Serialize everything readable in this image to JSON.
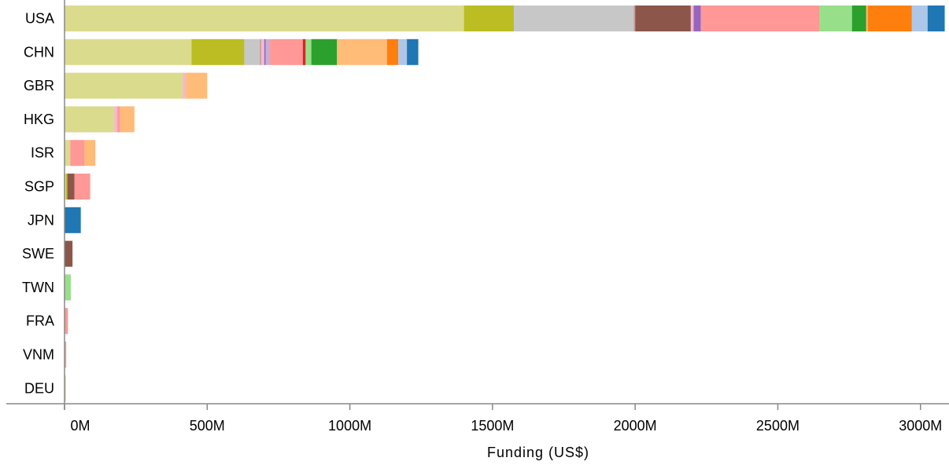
{
  "chart_data": {
    "type": "bar",
    "orientation": "horizontal",
    "stacked": true,
    "categories": [
      "USA",
      "CHN",
      "GBR",
      "HKG",
      "ISR",
      "SGP",
      "JPN",
      "SWE",
      "TWN",
      "FRA",
      "VNM",
      "DEU"
    ],
    "xlabel": "Funding (US$)",
    "xlim": [
      0,
      3100
    ],
    "xticks": [
      0,
      500,
      1000,
      1500,
      2000,
      2500,
      3000
    ],
    "xtick_labels": [
      "0M",
      "500M",
      "1000M",
      "1500M",
      "2000M",
      "2500M",
      "3000M"
    ],
    "grid": false,
    "legend": "none",
    "series": [
      {
        "color": "#dbdb8d",
        "values": [
          1400,
          445,
          415,
          175,
          20,
          5,
          0,
          0,
          0,
          0,
          0,
          5
        ]
      },
      {
        "color": "#bcbd22",
        "values": [
          175,
          185,
          0,
          0,
          0,
          5,
          0,
          0,
          0,
          0,
          0,
          0
        ]
      },
      {
        "color": "#c7c7c7",
        "values": [
          420,
          55,
          0,
          0,
          0,
          0,
          0,
          0,
          0,
          0,
          0,
          0
        ]
      },
      {
        "color": "#c49c94",
        "values": [
          5,
          5,
          0,
          0,
          0,
          0,
          0,
          0,
          0,
          0,
          0,
          0
        ]
      },
      {
        "color": "#8c564b",
        "values": [
          195,
          0,
          0,
          0,
          0,
          25,
          0,
          28,
          0,
          0,
          0,
          0
        ]
      },
      {
        "color": "#f7b6d2",
        "values": [
          10,
          10,
          10,
          10,
          0,
          0,
          0,
          0,
          0,
          0,
          0,
          0
        ]
      },
      {
        "color": "#9467bd",
        "values": [
          25,
          5,
          0,
          0,
          0,
          0,
          0,
          0,
          0,
          0,
          0,
          0
        ]
      },
      {
        "color": "#c5b0d5",
        "values": [
          0,
          15,
          0,
          0,
          0,
          0,
          0,
          0,
          0,
          0,
          0,
          0
        ]
      },
      {
        "color": "#ff9896",
        "values": [
          415,
          115,
          0,
          10,
          50,
          55,
          0,
          0,
          0,
          12,
          6,
          0
        ]
      },
      {
        "color": "#d62728",
        "values": [
          0,
          10,
          0,
          0,
          0,
          0,
          0,
          0,
          0,
          0,
          0,
          0
        ]
      },
      {
        "color": "#98df8a",
        "values": [
          115,
          20,
          0,
          0,
          0,
          0,
          0,
          0,
          22,
          0,
          0,
          0
        ]
      },
      {
        "color": "#2ca02c",
        "values": [
          50,
          90,
          0,
          0,
          0,
          0,
          0,
          0,
          0,
          0,
          0,
          0
        ]
      },
      {
        "color": "#ffbb78",
        "values": [
          5,
          175,
          75,
          50,
          38,
          0,
          0,
          0,
          0,
          0,
          0,
          0
        ]
      },
      {
        "color": "#ff7f0e",
        "values": [
          155,
          40,
          0,
          0,
          0,
          0,
          0,
          0,
          0,
          0,
          0,
          0
        ]
      },
      {
        "color": "#aec7e8",
        "values": [
          55,
          30,
          0,
          0,
          0,
          0,
          0,
          0,
          0,
          0,
          0,
          0
        ]
      },
      {
        "color": "#1f77b4",
        "values": [
          60,
          40,
          0,
          0,
          0,
          0,
          57,
          0,
          0,
          0,
          0,
          0
        ]
      }
    ]
  }
}
